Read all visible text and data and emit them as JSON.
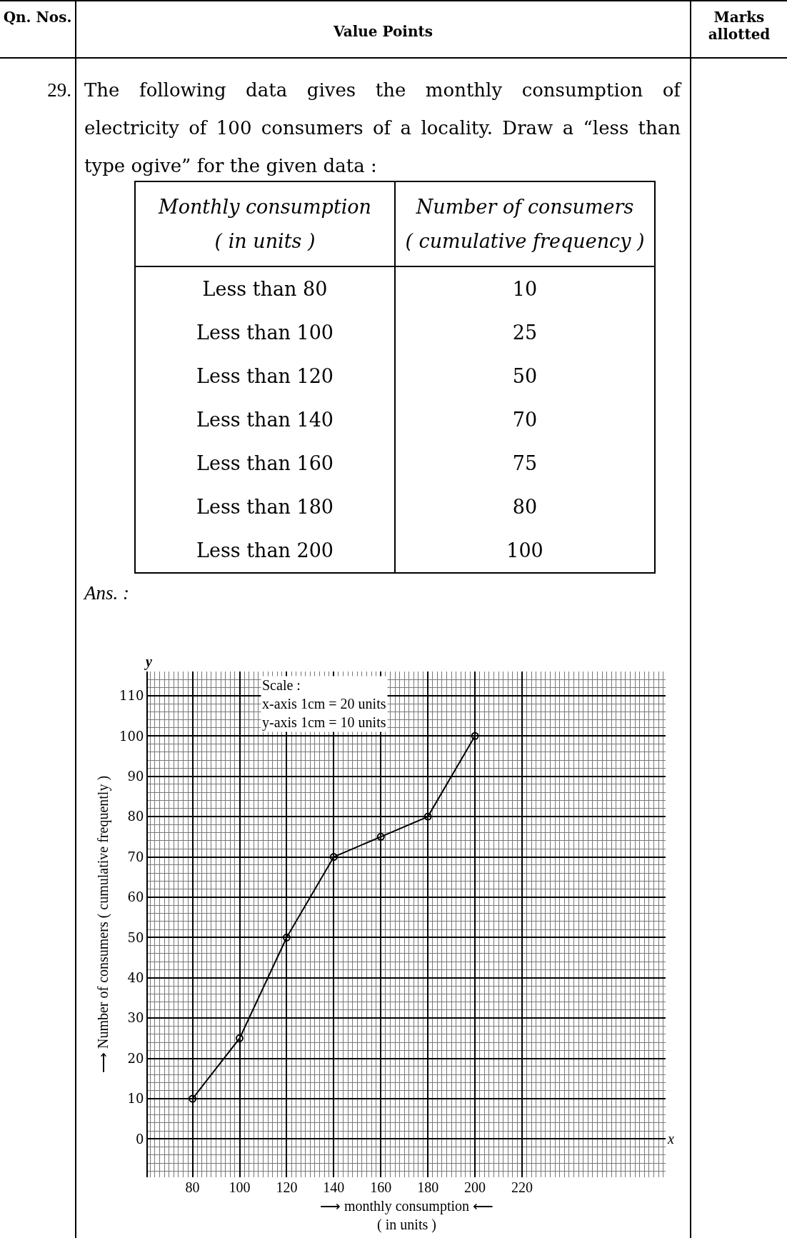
{
  "chart_data": {
    "type": "line",
    "title": "The following data gives the monthly consumption of electricity of 100 consumers of a locality. Draw a “less than type ogive” for the given data :",
    "xlabel": "⟶ monthly consumption ⟵\n( in units )",
    "ylabel": "⟶ Number of consumers ( cumulative frequently )",
    "x": [
      80,
      100,
      120,
      140,
      160,
      180,
      200
    ],
    "values": [
      10,
      25,
      50,
      70,
      75,
      80,
      100
    ],
    "color": "#000000",
    "marker": "circle",
    "line_style": "solid",
    "grid": true,
    "xlim": [
      61,
      281
    ],
    "xticks": [
      80,
      100,
      120,
      140,
      160,
      180,
      200,
      220
    ],
    "ylim": [
      -9.5,
      116
    ],
    "yticks": [
      0,
      10,
      20,
      30,
      40,
      50,
      60,
      70,
      80,
      90,
      100,
      110
    ],
    "annotations": [
      "Qn. Nos.",
      "Value Points",
      "Marks allotted",
      "29.",
      "Monthly consumption",
      "( in units )",
      "Number of consumers",
      "( cumulative frequency )",
      "Less than 80",
      "Less than 100",
      "Less than 120",
      "Less than 140",
      "Less than 160",
      "Less than 180",
      "Less than 200",
      "Ans. :",
      "Scale :\nx-axis 1cm = 20 units\ny-axis 1cm = 10 units",
      "x",
      "y",
      "10",
      "25",
      "50",
      "70",
      "75",
      "80",
      "100"
    ]
  }
}
